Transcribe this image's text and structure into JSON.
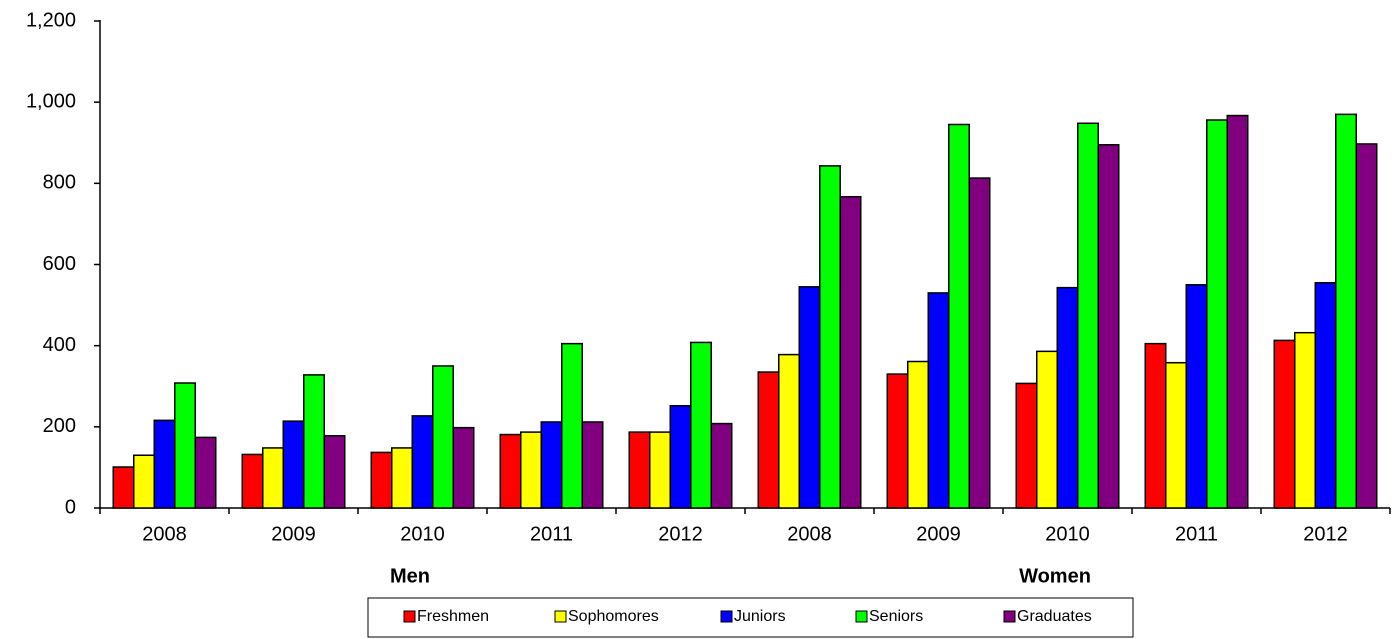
{
  "chart_data": {
    "type": "bar",
    "categories": [
      "2008",
      "2009",
      "2010",
      "2011",
      "2012",
      "2008",
      "2009",
      "2010",
      "2011",
      "2012"
    ],
    "series": [
      {
        "name": "Freshmen",
        "color": "#ff0000",
        "values": [
          101,
          132,
          137,
          181,
          187,
          335,
          330,
          307,
          405,
          413
        ]
      },
      {
        "name": "Sophomores",
        "color": "#ffff00",
        "values": [
          130,
          148,
          148,
          187,
          187,
          378,
          361,
          386,
          358,
          432
        ]
      },
      {
        "name": "Juniors",
        "color": "#0000ff",
        "values": [
          216,
          214,
          227,
          212,
          252,
          545,
          530,
          543,
          550,
          555
        ]
      },
      {
        "name": "Seniors",
        "color": "#00ff00",
        "values": [
          308,
          328,
          350,
          405,
          408,
          843,
          945,
          948,
          956,
          970
        ]
      },
      {
        "name": "Graduates",
        "color": "#800080",
        "values": [
          174,
          178,
          198,
          212,
          208,
          767,
          813,
          895,
          967,
          897
        ]
      }
    ],
    "annotations": [
      "Men",
      "Women"
    ],
    "ylim": [
      0,
      1200
    ],
    "yticks": [
      0,
      200,
      400,
      600,
      800,
      {
        "value": 1000,
        "label": "1,000"
      },
      {
        "value": 1200,
        "label": "1,200"
      }
    ],
    "grid": false,
    "legend": "bottom"
  }
}
